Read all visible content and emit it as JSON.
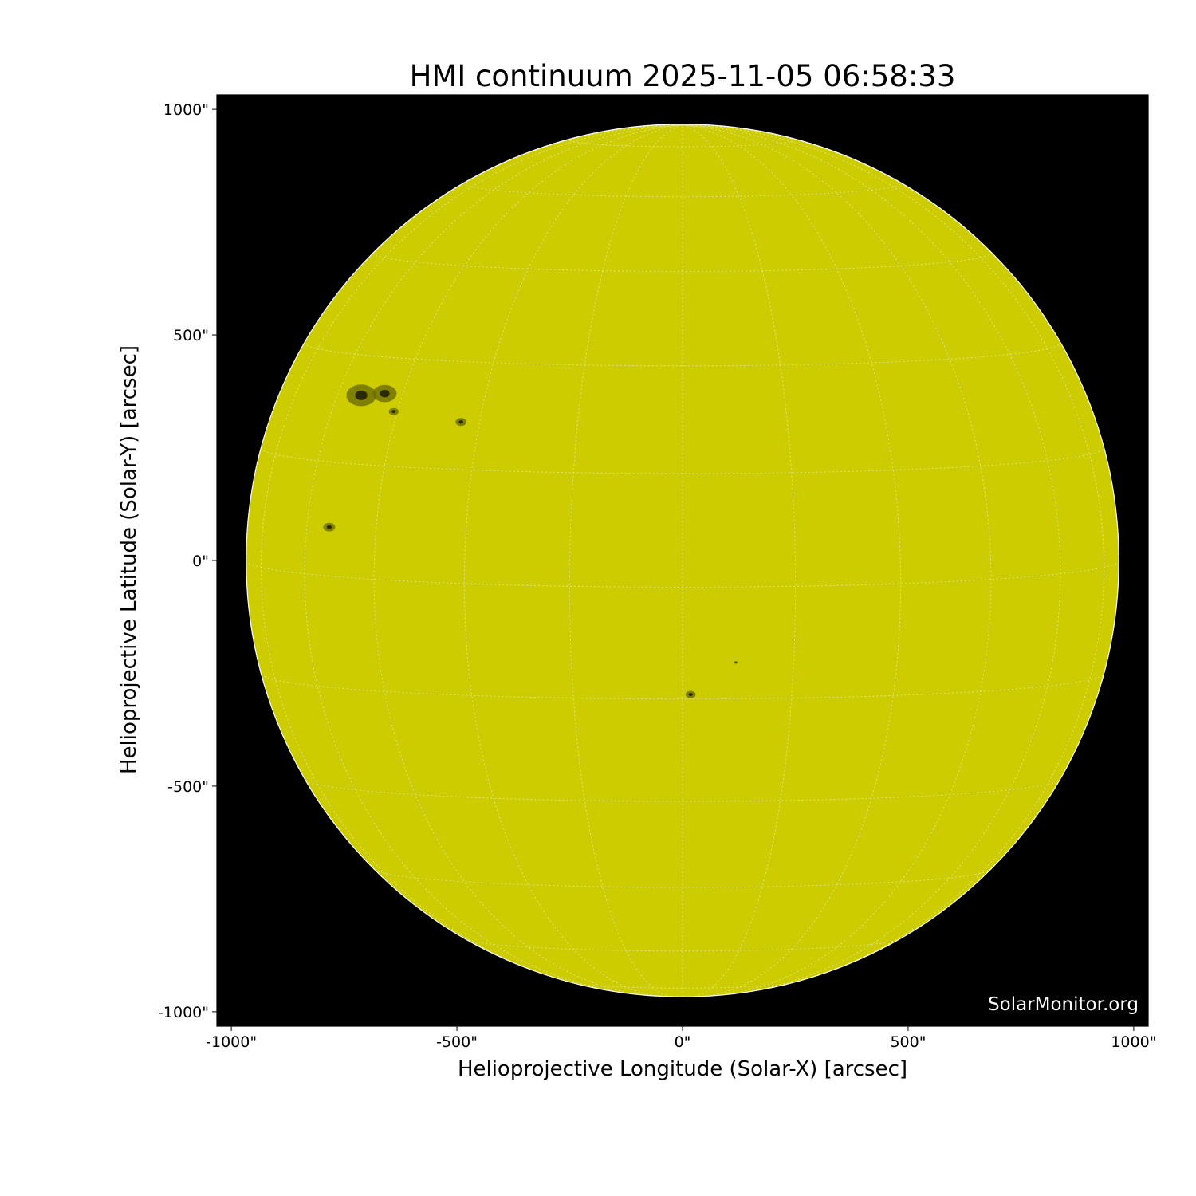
{
  "title": "HMI continuum 2025-11-05 06:58:33",
  "xaxis": {
    "label": "Helioprojective Longitude (Solar-X) [arcsec]",
    "range": [
      -1032,
      1032
    ],
    "ticks": [
      -1000,
      -500,
      0,
      500,
      1000
    ],
    "tick_labels": [
      "-1000\"",
      "-500\"",
      "0\"",
      "500\"",
      "1000\""
    ]
  },
  "yaxis": {
    "label": "Helioprojective Latitude (Solar-Y) [arcsec]",
    "range": [
      -1032,
      1032
    ],
    "ticks": [
      -1000,
      -500,
      0,
      500,
      1000
    ],
    "tick_labels": [
      "-1000\"",
      "-500\"",
      "0\"",
      "500\"",
      "1000\""
    ]
  },
  "watermark": "SolarMonitor.org",
  "colors": {
    "disk": "#cccc00",
    "background": "#000000",
    "grid": "#e8e8c0",
    "sunspot": "#2a2a00"
  },
  "solar_radius_arcsec": 967,
  "grid_spacing_deg": 15,
  "sunspots": [
    {
      "x": -712,
      "y": 366,
      "size": 30
    },
    {
      "x": -660,
      "y": 370,
      "size": 24
    },
    {
      "x": -640,
      "y": 330,
      "size": 10
    },
    {
      "x": -491,
      "y": 307,
      "size": 11
    },
    {
      "x": -783,
      "y": 74,
      "size": 12
    },
    {
      "x": 18,
      "y": -297,
      "size": 10
    },
    {
      "x": 118,
      "y": -226,
      "size": 4
    }
  ]
}
